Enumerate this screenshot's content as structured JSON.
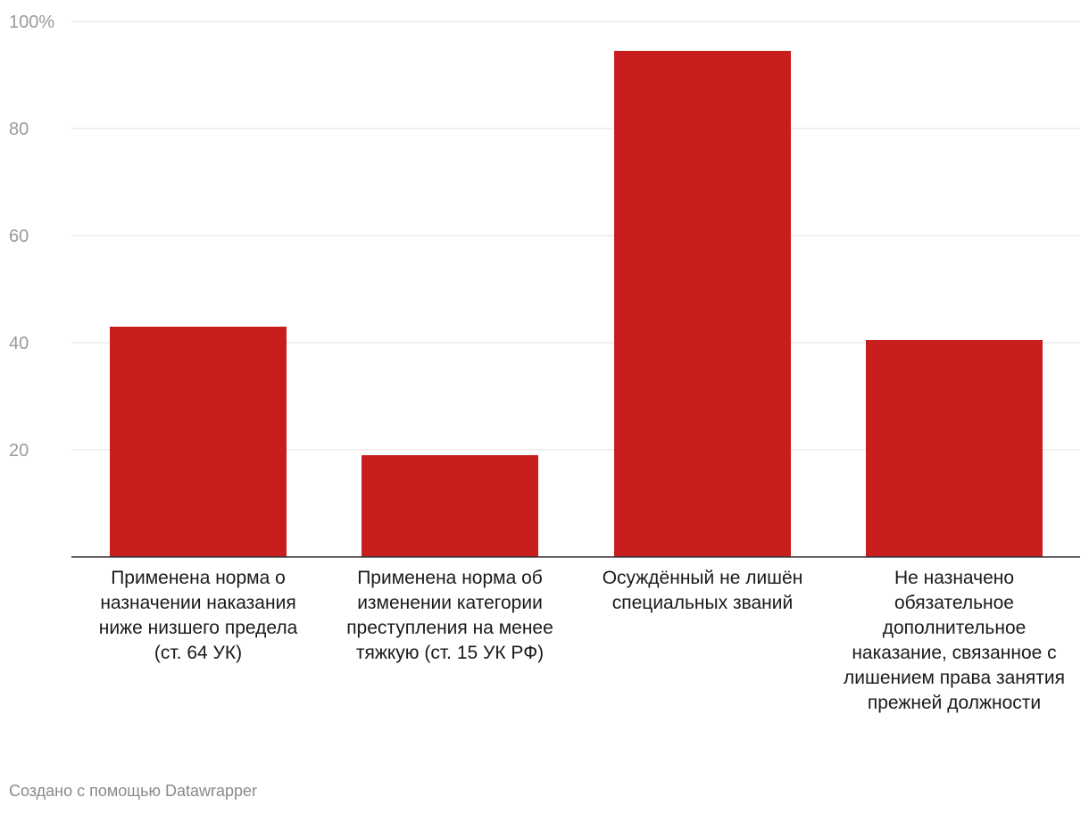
{
  "chart_data": {
    "type": "bar",
    "categories": [
      "Применена норма о назначении наказания ниже низшего предела (ст. 64 УК)",
      "Применена норма об изменении категории преступления на менее тяжкую (ст. 15 УК РФ)",
      "Осуждённый не лишён специальных званий",
      "Не назначено обязательное дополнительное наказание, связанное с лишением права занятия прежней должности"
    ],
    "values": [
      43,
      19,
      94.5,
      40.5
    ],
    "ylim": [
      0,
      100
    ],
    "yticks": [
      20,
      40,
      60,
      80,
      100
    ],
    "ytick_labels": [
      "20",
      "40",
      "60",
      "80",
      "100%"
    ],
    "title": "",
    "xlabel": "",
    "ylabel": "",
    "grid": true
  },
  "colors": {
    "bar": "#c81e1e",
    "grid": "#e2e2e2",
    "tick_text": "#9a9a9a",
    "baseline": "#333333"
  },
  "credit": "Создано с помощью Datawrapper"
}
